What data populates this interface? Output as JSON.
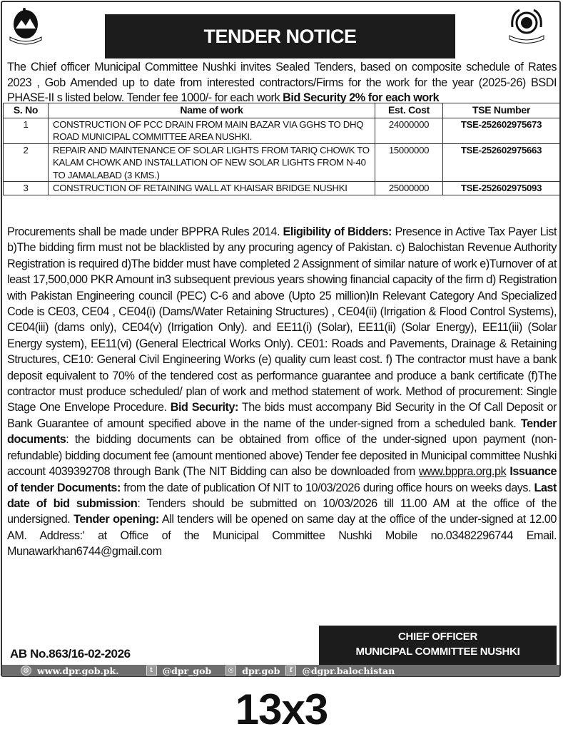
{
  "header": {
    "title": "TENDER NOTICE"
  },
  "intro": {
    "text": "The Chief officer Municipal Committee Nushki invites Sealed Tenders, based on composite schedule of Rates 2023 , Gob Amended up to date from interested contractors/Firms for the work for the year (2025-26) BSDI PHASE-II s listed below. Tender fee 1000/- for each work ",
    "bold": "Bid Security 2% for each work"
  },
  "table": {
    "headers": [
      "S. No",
      "Name of work",
      "Est. Cost",
      "TSE Number"
    ],
    "rows": [
      {
        "sno": "1",
        "name": "CONSTRUCTION OF PCC DRAIN FROM MAIN BAZAR VIA GGHS TO DHQ ROAD MUNICIPAL COMMITTEE AREA NUSHKI.",
        "cost": "24000000",
        "tse": "TSE-252602975673"
      },
      {
        "sno": "2",
        "name": "REPAIR AND MAINTENANCE OF SOLAR LIGHTS FROM TARIQ CHOWK TO KALAM CHOWK AND INSTALLATION OF NEW SOLAR LIGHTS FROM N-40 TO JAMALABAD (3 KMS.)",
        "cost": "15000000",
        "tse": "TSE-252602975663"
      },
      {
        "sno": "3",
        "name": "CONSTRUCTION OF RETAINING WALL AT KHAISAR BRIDGE NUSHKI",
        "cost": "25000000",
        "tse": "TSE-252602975093"
      }
    ]
  },
  "body": {
    "s0": "Procurements shall be made under BPPRA Rules 2014. ",
    "s1": "Eligibility of Bidders:",
    "s2": " Presence in Active Tax Payer List b)The bidding firm must not be blacklisted by any procuring agency of Pakistan. c) Balochistan Revenue Authority Registration is required d)The bidder must have completed 2 Assignment of similar nature of work e)Turnover of at least 17,500,000 PKR Amount in3 subsequent previous years showing financial capacity of the firm d) Registration with Pakistan Engineering council (PEC) C-6 and above (Upto 25 million)In Relevant Category And Specialized Code is CE03, CE04 , CE04(i) (Dams/Water Retaining Structures) , CE04(ii) (Irrigation & Flood Control Systems), CE04(iii) (dams only), CE04(v) (Irrigation Only). and EE11(i) (Solar), EE11(ii) (Solar Energy), EE11(iii) (Solar Energy system), EE11(vi) (General Electrical Works Only). CE01: Roads and Pavements, Drainage & Retaining Structures, CE10: General Civil Engineering Works (e) quality cum least cost. f) The contractor must have a bank deposit equivalent to 70% of the tendered cost as performance guarantee and produce a bank certificate (f)The contractor must produce scheduled/ plan of work and method statement of work. Method of procurement: Single Stage One Envelope Procedure. ",
    "s3": "Bid Security:",
    "s4": " The bids must accompany Bid Security in the Of Call Deposit or Bank Guarantee of amount specified above in the name of the under-signed from a scheduled bank. ",
    "s5": "Tender documents",
    "s6": ": the bidding documents can be obtained from office of the under-signed upon payment (non-refundable) bidding document fee (amount mentioned above) Tender fee deposited in Municipal committee Nushki account 4039392708 through Bank (The NIT Bidding can also be downloaded from ",
    "link": "www.bppra.org.pk",
    "s7": " Issuance of tender Documents:",
    "s8": " from the date of publication Of NIT to 10/03/2026 during office hours on weeks days. ",
    "s9": "Last date of bid submission",
    "s10": ": Tenders should be submitted on 10/03/2026 till 11.00 AM at the office of the undersigned. ",
    "s11": "Tender opening:",
    "s12": " All tenders will be opened on same day at the office of the under-signed at 12.00 AM. Address:' at Office of the Municipal Committee Nushki Mobile no.03482296744 Email. Munawarkhan6744@gmail.com"
  },
  "signature": {
    "line1": "CHIEF OFFICER",
    "line2": "MUNICIPAL COMMITTEE NUSHKI"
  },
  "ab_number": "AB No.863/16-02-2026",
  "footer": {
    "website": "www.dpr.gob.pk.",
    "twitter": "@dpr_gob",
    "instagram": "dpr.gob",
    "facebook": "@dgpr.balochistan"
  },
  "ad_size": "13x3"
}
